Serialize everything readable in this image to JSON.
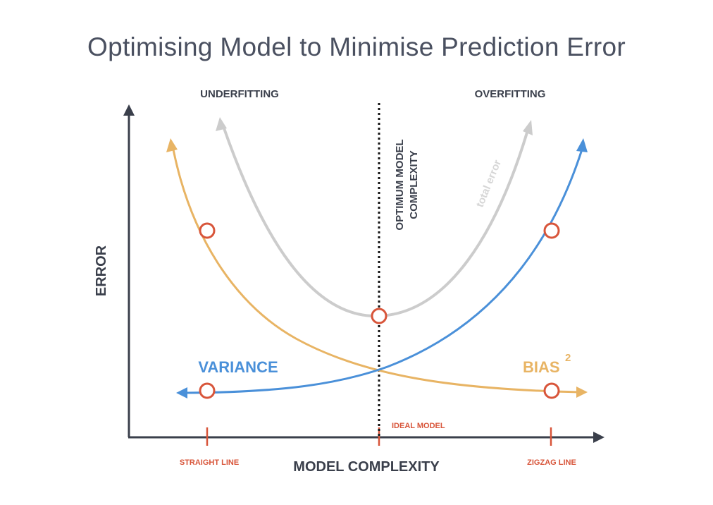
{
  "title": "Optimising Model to Minimise Prediction Error",
  "labels": {
    "underfitting": "UNDERFITTING",
    "overfitting": "OVERFITTING",
    "optimum_line1": "OPTIMUM MODEL",
    "optimum_line2": "COMPLEXITY",
    "total_error": "total error",
    "variance": "VARIANCE",
    "bias": "BIAS",
    "bias_exponent": "2",
    "y_axis": "ERROR",
    "x_axis": "MODEL COMPLEXITY",
    "ideal_model": "IDEAL MODEL",
    "straight_line": "STRAIGHT LINE",
    "zigzag_line": "ZIGZAG LINE"
  },
  "colors": {
    "variance": "#4a90d9",
    "bias": "#e8b464",
    "total_error": "#cccccc",
    "marker": "#d8553a",
    "axis": "#3a3f4b",
    "title": "#4a5060"
  }
}
